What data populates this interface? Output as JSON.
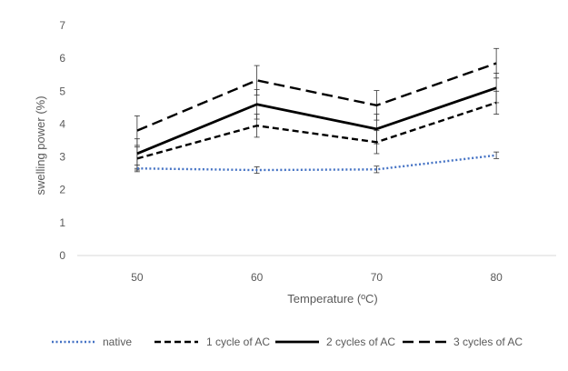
{
  "chart_data": {
    "type": "line",
    "title": "",
    "xlabel": "Temperature (ºC)",
    "ylabel": "swelling power (%)",
    "categories": [
      "50",
      "60",
      "70",
      "80"
    ],
    "y_ticks": [
      "0",
      "1",
      "2",
      "3",
      "4",
      "5",
      "6",
      "7"
    ],
    "ylim": [
      0,
      7
    ],
    "grid": false,
    "legend_position": "bottom",
    "series": [
      {
        "name": "native",
        "values": [
          2.65,
          2.6,
          2.62,
          3.05
        ],
        "errors": [
          0.1,
          0.1,
          0.1,
          0.1
        ],
        "color": "#4472C4",
        "style": "dotted"
      },
      {
        "name": "1 cycle of AC",
        "values": [
          2.95,
          3.95,
          3.45,
          4.65
        ],
        "errors": [
          0.35,
          0.35,
          0.35,
          0.35
        ],
        "color": "#000000",
        "style": "short-dash"
      },
      {
        "name": "2 cycles of AC",
        "values": [
          3.1,
          4.6,
          3.85,
          5.1
        ],
        "errors": [
          0.45,
          0.45,
          0.45,
          0.45
        ],
        "color": "#000000",
        "style": "solid"
      },
      {
        "name": "3 cycles of AC",
        "values": [
          3.8,
          5.33,
          4.57,
          5.85
        ],
        "errors": [
          0.45,
          0.45,
          0.45,
          0.45
        ],
        "color": "#000000",
        "style": "long-dash"
      }
    ]
  }
}
